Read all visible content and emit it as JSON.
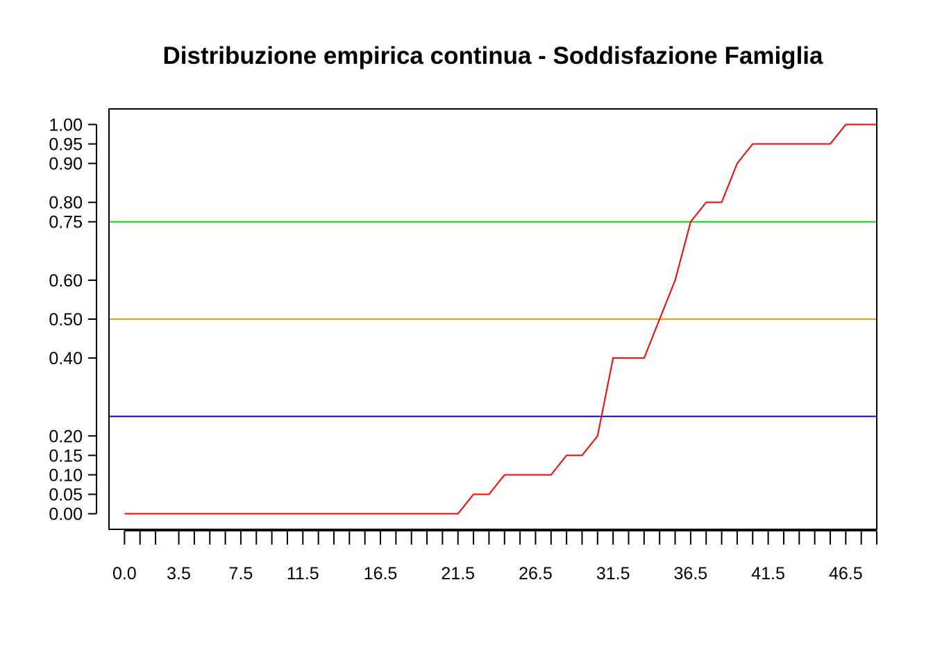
{
  "chart_data": {
    "type": "line",
    "title": "Distribuzione empirica continua - Soddisfazione Famiglia",
    "xlabel": "",
    "ylabel": "",
    "xlim": [
      -1.0,
      48.5
    ],
    "ylim": [
      -0.04,
      1.04
    ],
    "x_ticks": [
      0.0,
      1.0,
      2.0,
      3.5,
      4.5,
      5.5,
      6.5,
      7.5,
      8.5,
      9.5,
      10.5,
      11.5,
      12.5,
      13.5,
      14.5,
      15.5,
      16.5,
      17.5,
      18.5,
      19.5,
      20.5,
      21.5,
      22.5,
      23.5,
      24.5,
      25.5,
      26.5,
      27.5,
      28.5,
      29.5,
      30.5,
      31.5,
      32.5,
      33.5,
      34.5,
      35.5,
      36.5,
      37.5,
      38.5,
      39.5,
      40.5,
      41.5,
      42.5,
      43.5,
      44.5,
      45.5,
      46.5,
      47.5,
      48.5
    ],
    "x_tick_labels": [
      {
        "value": 0.0,
        "label": "0.0"
      },
      {
        "value": 3.5,
        "label": "3.5"
      },
      {
        "value": 7.5,
        "label": "7.5"
      },
      {
        "value": 11.5,
        "label": "11.5"
      },
      {
        "value": 16.5,
        "label": "16.5"
      },
      {
        "value": 21.5,
        "label": "21.5"
      },
      {
        "value": 26.5,
        "label": "26.5"
      },
      {
        "value": 31.5,
        "label": "31.5"
      },
      {
        "value": 36.5,
        "label": "36.5"
      },
      {
        "value": 41.5,
        "label": "41.5"
      },
      {
        "value": 46.5,
        "label": "46.5"
      }
    ],
    "y_ticks": [
      {
        "value": 0.0,
        "label": "0.00"
      },
      {
        "value": 0.05,
        "label": "0.05"
      },
      {
        "value": 0.1,
        "label": "0.10"
      },
      {
        "value": 0.15,
        "label": "0.15"
      },
      {
        "value": 0.2,
        "label": "0.20"
      },
      {
        "value": 0.4,
        "label": "0.40"
      },
      {
        "value": 0.5,
        "label": "0.50"
      },
      {
        "value": 0.6,
        "label": "0.60"
      },
      {
        "value": 0.75,
        "label": "0.75"
      },
      {
        "value": 0.8,
        "label": "0.80"
      },
      {
        "value": 0.9,
        "label": "0.90"
      },
      {
        "value": 0.95,
        "label": "0.95"
      },
      {
        "value": 1.0,
        "label": "1.00"
      }
    ],
    "reference_lines": [
      {
        "y": 0.25,
        "color": "#0000ff"
      },
      {
        "y": 0.5,
        "color": "#ff9900"
      },
      {
        "y": 0.75,
        "color": "#00dd00"
      }
    ],
    "series": [
      {
        "color": "#ff0000",
        "x": [
          0.0,
          21.5,
          22.5,
          23.5,
          24.5,
          25.5,
          26.5,
          27.5,
          28.5,
          29.5,
          30.5,
          31.5,
          32.5,
          33.5,
          34.5,
          35.5,
          36.5,
          37.5,
          38.5,
          39.5,
          40.5,
          41.5,
          42.5,
          43.5,
          44.5,
          45.5,
          46.5,
          47.5,
          48.5
        ],
        "y": [
          0.0,
          0.0,
          0.05,
          0.05,
          0.1,
          0.1,
          0.1,
          0.1,
          0.15,
          0.15,
          0.2,
          0.4,
          0.4,
          0.4,
          0.5,
          0.6,
          0.75,
          0.8,
          0.8,
          0.9,
          0.95,
          0.95,
          0.95,
          0.95,
          0.95,
          0.95,
          1.0,
          1.0,
          1.0
        ]
      }
    ],
    "grid": false,
    "legend": "none"
  }
}
